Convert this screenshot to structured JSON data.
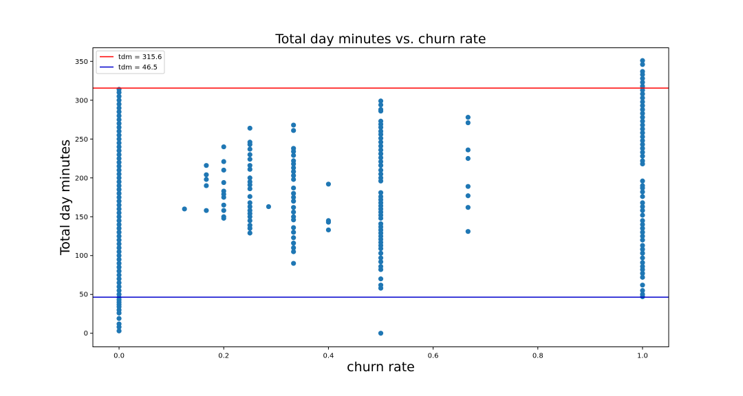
{
  "chart_data": {
    "type": "scatter",
    "title": "Total day minutes vs. churn rate",
    "xlabel": "churn rate",
    "ylabel": "Total day minutes",
    "xlim": [
      -0.05,
      1.05
    ],
    "ylim": [
      -17.5,
      367.5
    ],
    "xticks": [
      0.0,
      0.2,
      0.4,
      0.6,
      0.8,
      1.0
    ],
    "xtick_labels": [
      "0.0",
      "0.2",
      "0.4",
      "0.6",
      "0.8",
      "1.0"
    ],
    "yticks": [
      0,
      50,
      100,
      150,
      200,
      250,
      300,
      350
    ],
    "ytick_labels": [
      "0",
      "50",
      "100",
      "150",
      "200",
      "250",
      "300",
      "350"
    ],
    "grid": false,
    "legend_position": "top-left",
    "reference_lines": [
      {
        "name": "tdm = 315.6",
        "y": 315.6,
        "color": "#ff0000"
      },
      {
        "name": "tdm = 46.5",
        "y": 46.5,
        "color": "#0000cc"
      }
    ],
    "series": [
      {
        "color": "#1f77b4",
        "points": [
          [
            0.0,
            3
          ],
          [
            0.0,
            8
          ],
          [
            0.0,
            12
          ],
          [
            0.0,
            19
          ],
          [
            0.0,
            26
          ],
          [
            0.0,
            30
          ],
          [
            0.0,
            34
          ],
          [
            0.0,
            37
          ],
          [
            0.0,
            40
          ],
          [
            0.0,
            43
          ],
          [
            0.0,
            46
          ],
          [
            0.0,
            50
          ],
          [
            0.0,
            55
          ],
          [
            0.0,
            60
          ],
          [
            0.0,
            65
          ],
          [
            0.0,
            70
          ],
          [
            0.0,
            75
          ],
          [
            0.0,
            80
          ],
          [
            0.0,
            85
          ],
          [
            0.0,
            90
          ],
          [
            0.0,
            95
          ],
          [
            0.0,
            100
          ],
          [
            0.0,
            105
          ],
          [
            0.0,
            110
          ],
          [
            0.0,
            115
          ],
          [
            0.0,
            120
          ],
          [
            0.0,
            125
          ],
          [
            0.0,
            130
          ],
          [
            0.0,
            135
          ],
          [
            0.0,
            140
          ],
          [
            0.0,
            145
          ],
          [
            0.0,
            150
          ],
          [
            0.0,
            155
          ],
          [
            0.0,
            160
          ],
          [
            0.0,
            165
          ],
          [
            0.0,
            170
          ],
          [
            0.0,
            175
          ],
          [
            0.0,
            180
          ],
          [
            0.0,
            185
          ],
          [
            0.0,
            190
          ],
          [
            0.0,
            195
          ],
          [
            0.0,
            200
          ],
          [
            0.0,
            205
          ],
          [
            0.0,
            210
          ],
          [
            0.0,
            215
          ],
          [
            0.0,
            220
          ],
          [
            0.0,
            225
          ],
          [
            0.0,
            230
          ],
          [
            0.0,
            235
          ],
          [
            0.0,
            240
          ],
          [
            0.0,
            245
          ],
          [
            0.0,
            250
          ],
          [
            0.0,
            255
          ],
          [
            0.0,
            260
          ],
          [
            0.0,
            265
          ],
          [
            0.0,
            270
          ],
          [
            0.0,
            275
          ],
          [
            0.0,
            280
          ],
          [
            0.0,
            285
          ],
          [
            0.0,
            290
          ],
          [
            0.0,
            295
          ],
          [
            0.0,
            300
          ],
          [
            0.0,
            305
          ],
          [
            0.0,
            310
          ],
          [
            0.0,
            314
          ],
          [
            0.125,
            160
          ],
          [
            0.1667,
            158
          ],
          [
            0.1667,
            190
          ],
          [
            0.1667,
            198
          ],
          [
            0.1667,
            204
          ],
          [
            0.1667,
            216
          ],
          [
            0.2,
            148
          ],
          [
            0.2,
            150
          ],
          [
            0.2,
            158
          ],
          [
            0.2,
            165
          ],
          [
            0.2,
            175
          ],
          [
            0.2,
            179
          ],
          [
            0.2,
            183
          ],
          [
            0.2,
            194
          ],
          [
            0.2,
            210
          ],
          [
            0.2,
            221
          ],
          [
            0.2,
            240
          ],
          [
            0.25,
            129
          ],
          [
            0.25,
            135
          ],
          [
            0.25,
            139
          ],
          [
            0.25,
            145
          ],
          [
            0.25,
            150
          ],
          [
            0.25,
            154
          ],
          [
            0.25,
            158
          ],
          [
            0.25,
            163
          ],
          [
            0.25,
            168
          ],
          [
            0.25,
            176
          ],
          [
            0.25,
            186
          ],
          [
            0.25,
            191
          ],
          [
            0.25,
            195
          ],
          [
            0.25,
            200
          ],
          [
            0.25,
            211
          ],
          [
            0.25,
            216
          ],
          [
            0.25,
            224
          ],
          [
            0.25,
            230
          ],
          [
            0.25,
            237
          ],
          [
            0.25,
            243
          ],
          [
            0.25,
            246
          ],
          [
            0.25,
            264
          ],
          [
            0.2857,
            163
          ],
          [
            0.3333,
            90
          ],
          [
            0.3333,
            105
          ],
          [
            0.3333,
            110
          ],
          [
            0.3333,
            116
          ],
          [
            0.3333,
            123
          ],
          [
            0.3333,
            130
          ],
          [
            0.3333,
            136
          ],
          [
            0.3333,
            146
          ],
          [
            0.3333,
            150
          ],
          [
            0.3333,
            156
          ],
          [
            0.3333,
            162
          ],
          [
            0.3333,
            170
          ],
          [
            0.3333,
            175
          ],
          [
            0.3333,
            180
          ],
          [
            0.3333,
            187
          ],
          [
            0.3333,
            198
          ],
          [
            0.3333,
            203
          ],
          [
            0.3333,
            208
          ],
          [
            0.3333,
            213
          ],
          [
            0.3333,
            218
          ],
          [
            0.3333,
            222
          ],
          [
            0.3333,
            229
          ],
          [
            0.3333,
            234
          ],
          [
            0.3333,
            238
          ],
          [
            0.3333,
            261
          ],
          [
            0.3333,
            268
          ],
          [
            0.4,
            133
          ],
          [
            0.4,
            143
          ],
          [
            0.4,
            145
          ],
          [
            0.4,
            192
          ],
          [
            0.5,
            0
          ],
          [
            0.5,
            58
          ],
          [
            0.5,
            62
          ],
          [
            0.5,
            70
          ],
          [
            0.5,
            82
          ],
          [
            0.5,
            86
          ],
          [
            0.5,
            92
          ],
          [
            0.5,
            97
          ],
          [
            0.5,
            103
          ],
          [
            0.5,
            109
          ],
          [
            0.5,
            113
          ],
          [
            0.5,
            117
          ],
          [
            0.5,
            121
          ],
          [
            0.5,
            125
          ],
          [
            0.5,
            129
          ],
          [
            0.5,
            133
          ],
          [
            0.5,
            137
          ],
          [
            0.5,
            141
          ],
          [
            0.5,
            148
          ],
          [
            0.5,
            152
          ],
          [
            0.5,
            156
          ],
          [
            0.5,
            160
          ],
          [
            0.5,
            164
          ],
          [
            0.5,
            168
          ],
          [
            0.5,
            172
          ],
          [
            0.5,
            176
          ],
          [
            0.5,
            181
          ],
          [
            0.5,
            196
          ],
          [
            0.5,
            200
          ],
          [
            0.5,
            205
          ],
          [
            0.5,
            210
          ],
          [
            0.5,
            216
          ],
          [
            0.5,
            221
          ],
          [
            0.5,
            226
          ],
          [
            0.5,
            231
          ],
          [
            0.5,
            236
          ],
          [
            0.5,
            241
          ],
          [
            0.5,
            246
          ],
          [
            0.5,
            251
          ],
          [
            0.5,
            256
          ],
          [
            0.5,
            260
          ],
          [
            0.5,
            265
          ],
          [
            0.5,
            269
          ],
          [
            0.5,
            273
          ],
          [
            0.5,
            286
          ],
          [
            0.5,
            288
          ],
          [
            0.5,
            294
          ],
          [
            0.5,
            299
          ],
          [
            0.6667,
            131
          ],
          [
            0.6667,
            162
          ],
          [
            0.6667,
            177
          ],
          [
            0.6667,
            189
          ],
          [
            0.6667,
            225
          ],
          [
            0.6667,
            236
          ],
          [
            0.6667,
            271
          ],
          [
            0.6667,
            278
          ],
          [
            1.0,
            47
          ],
          [
            1.0,
            50
          ],
          [
            1.0,
            55
          ],
          [
            1.0,
            62
          ],
          [
            1.0,
            72
          ],
          [
            1.0,
            77
          ],
          [
            1.0,
            82
          ],
          [
            1.0,
            86
          ],
          [
            1.0,
            91
          ],
          [
            1.0,
            97
          ],
          [
            1.0,
            103
          ],
          [
            1.0,
            108
          ],
          [
            1.0,
            113
          ],
          [
            1.0,
            120
          ],
          [
            1.0,
            125
          ],
          [
            1.0,
            130
          ],
          [
            1.0,
            135
          ],
          [
            1.0,
            140
          ],
          [
            1.0,
            145
          ],
          [
            1.0,
            152
          ],
          [
            1.0,
            158
          ],
          [
            1.0,
            163
          ],
          [
            1.0,
            168
          ],
          [
            1.0,
            176
          ],
          [
            1.0,
            182
          ],
          [
            1.0,
            187
          ],
          [
            1.0,
            190
          ],
          [
            1.0,
            196
          ],
          [
            1.0,
            218
          ],
          [
            1.0,
            222
          ],
          [
            1.0,
            228
          ],
          [
            1.0,
            233
          ],
          [
            1.0,
            238
          ],
          [
            1.0,
            243
          ],
          [
            1.0,
            248
          ],
          [
            1.0,
            253
          ],
          [
            1.0,
            258
          ],
          [
            1.0,
            263
          ],
          [
            1.0,
            268
          ],
          [
            1.0,
            273
          ],
          [
            1.0,
            278
          ],
          [
            1.0,
            283
          ],
          [
            1.0,
            288
          ],
          [
            1.0,
            293
          ],
          [
            1.0,
            298
          ],
          [
            1.0,
            303
          ],
          [
            1.0,
            308
          ],
          [
            1.0,
            313
          ],
          [
            1.0,
            318
          ],
          [
            1.0,
            323
          ],
          [
            1.0,
            328
          ],
          [
            1.0,
            333
          ],
          [
            1.0,
            337
          ],
          [
            1.0,
            346
          ],
          [
            1.0,
            351
          ]
        ]
      }
    ]
  }
}
